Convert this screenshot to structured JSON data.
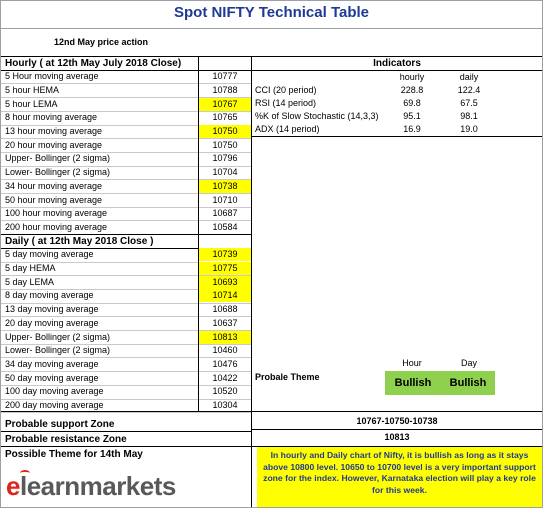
{
  "title": "Spot NIFTY Technical Table",
  "subtitle": "12nd May price action",
  "hourly": {
    "header": "Hourly ( at 12th May July 2018 Close)",
    "rows": [
      {
        "label": "5 Hour moving average",
        "value": "10777",
        "highlight": false
      },
      {
        "label": "5 hour HEMA",
        "value": "10788",
        "highlight": false
      },
      {
        "label": "5 hour LEMA",
        "value": "10767",
        "highlight": true
      },
      {
        "label": "8 hour moving average",
        "value": "10765",
        "highlight": false
      },
      {
        "label": "13 hour moving average",
        "value": "10750",
        "highlight": true
      },
      {
        "label": "20 hour moving average",
        "value": "10750",
        "highlight": false
      },
      {
        "label": "Upper- Bollinger (2 sigma)",
        "value": "10796",
        "highlight": false
      },
      {
        "label": "Lower- Bollinger (2 sigma)",
        "value": "10704",
        "highlight": false
      },
      {
        "label": "34 hour moving average",
        "value": "10738",
        "highlight": true
      },
      {
        "label": "50 hour moving average",
        "value": "10710",
        "highlight": false
      },
      {
        "label": "100 hour moving average",
        "value": "10687",
        "highlight": false
      },
      {
        "label": "200 hour moving average",
        "value": "10584",
        "highlight": false
      }
    ]
  },
  "daily": {
    "header": "Daily ( at 12th May 2018 Close )",
    "rows": [
      {
        "label": "5 day moving average",
        "value": "10739",
        "highlight": true
      },
      {
        "label": "5 day HEMA",
        "value": "10775",
        "highlight": true
      },
      {
        "label": "5 day LEMA",
        "value": "10693",
        "highlight": true
      },
      {
        "label": "8 day moving average",
        "value": "10714",
        "highlight": true
      },
      {
        "label": "13 day moving average",
        "value": "10688",
        "highlight": false
      },
      {
        "label": "20 day moving average",
        "value": "10637",
        "highlight": false
      },
      {
        "label": "Upper- Bollinger (2 sigma)",
        "value": "10813",
        "highlight": true
      },
      {
        "label": "Lower- Bollinger (2 sigma)",
        "value": "10460",
        "highlight": false
      },
      {
        "label": "34 day moving average",
        "value": "10476",
        "highlight": false
      },
      {
        "label": "50 day moving average",
        "value": "10422",
        "highlight": false
      },
      {
        "label": "100 day moving average",
        "value": "10520",
        "highlight": false
      },
      {
        "label": "200 day moving average",
        "value": "10304",
        "highlight": false
      }
    ]
  },
  "indicators": {
    "header": "Indicators",
    "col_hourly": "hourly",
    "col_daily": "daily",
    "rows": [
      {
        "label": "CCI (20 period)",
        "hourly": "228.8",
        "daily": "122.4"
      },
      {
        "label": "RSI (14 period)",
        "hourly": "69.8",
        "daily": "67.5"
      },
      {
        "label": "%K of Slow Stochastic (14,3,3)",
        "hourly": "95.1",
        "daily": "98.1"
      },
      {
        "label": "ADX (14 period)",
        "hourly": "16.9",
        "daily": "19.0"
      }
    ]
  },
  "theme": {
    "label": "Probale Theme",
    "col_hour": "Hour",
    "col_day": "Day",
    "hour_value": "Bullish",
    "day_value": "Bullish"
  },
  "support": {
    "label": "Probable support Zone",
    "value": "10767-10750-10738"
  },
  "resistance": {
    "label": "Probable resistance Zone",
    "value": "10813"
  },
  "possible_theme_label": "Possible Theme for 14th May",
  "note": "In hourly and Daily chart of Nifty, it is bullish as long as it stays above 10800 level. 10650 to 10700 level is a very important support zone for the index. However, Karnataka election will play a key role for this week.",
  "logo": {
    "first": "e",
    "rest": "learnmarkets"
  },
  "colors": {
    "title": "#1f3a93",
    "highlight": "#ffff00",
    "theme_fill": "#8fd14f",
    "logo_red": "#e2231a",
    "logo_gray": "#595959"
  }
}
